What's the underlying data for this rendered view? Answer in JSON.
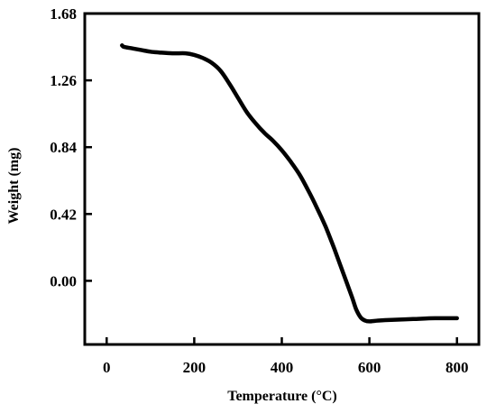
{
  "chart_data": {
    "type": "line",
    "title": "",
    "xlabel": "Temperature (°C)",
    "ylabel": "Weight (mg)",
    "xlim": [
      -50,
      850
    ],
    "ylim": [
      -0.4,
      1.68
    ],
    "xticks": [
      0,
      200,
      400,
      600,
      800
    ],
    "xtick_labels": [
      "0",
      "200",
      "400",
      "600",
      "800"
    ],
    "yticks": [
      0.0,
      0.42,
      0.84,
      1.26,
      1.68
    ],
    "ytick_labels": [
      "0.00",
      "0.42",
      "0.84",
      "1.26",
      "1.68"
    ],
    "grid": false,
    "legend": false,
    "line_color": "#000000",
    "series": [
      {
        "x": [
          35,
          40,
          60,
          80,
          100,
          120,
          150,
          180,
          200,
          220,
          240,
          260,
          280,
          300,
          320,
          340,
          360,
          380,
          400,
          420,
          440,
          460,
          480,
          500,
          520,
          540,
          560,
          570,
          580,
          590,
          600,
          620,
          650,
          700,
          750,
          800
        ],
        "y": [
          1.48,
          1.47,
          1.46,
          1.45,
          1.44,
          1.435,
          1.43,
          1.43,
          1.42,
          1.4,
          1.37,
          1.32,
          1.24,
          1.15,
          1.06,
          0.99,
          0.93,
          0.88,
          0.82,
          0.75,
          0.67,
          0.57,
          0.46,
          0.34,
          0.2,
          0.05,
          -0.1,
          -0.18,
          -0.23,
          -0.25,
          -0.255,
          -0.25,
          -0.245,
          -0.24,
          -0.235,
          -0.235
        ]
      }
    ]
  }
}
